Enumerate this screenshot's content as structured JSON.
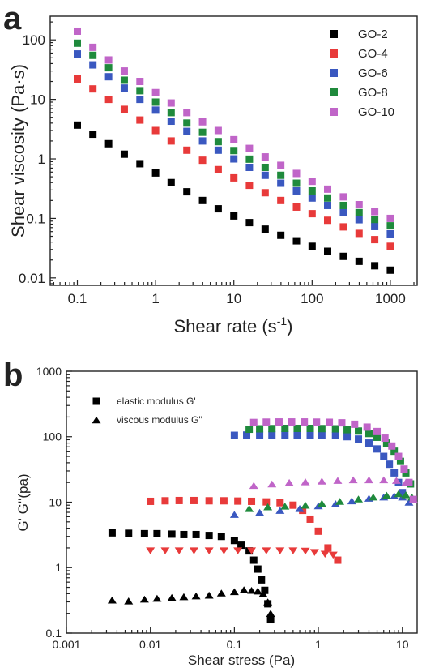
{
  "chart_data": [
    {
      "panel_label": "a",
      "type": "scatter",
      "xlabel": "Shear rate (s",
      "xlabel_sup": "-1",
      "xlabel_tail": ")",
      "ylabel": "Shear viscosity (Pa·s)",
      "xscale": "log",
      "yscale": "log",
      "xlim": [
        0.045,
        2200
      ],
      "ylim": [
        0.0075,
        250
      ],
      "xticks": [
        0.1,
        1,
        10,
        100,
        1000
      ],
      "xtick_labels": [
        "0.1",
        "1",
        "10",
        "100",
        "1000"
      ],
      "yticks": [
        0.01,
        0.1,
        1,
        10,
        100
      ],
      "ytick_labels": [
        "0.01",
        "0.1",
        "1",
        "10",
        "100"
      ],
      "legend_position": "top-right",
      "grid": false,
      "series": [
        {
          "name": "GO-2",
          "color": "#000000",
          "marker": "square",
          "x": [
            0.1,
            0.158,
            0.251,
            0.398,
            0.631,
            1,
            1.58,
            2.51,
            3.98,
            6.31,
            10,
            15.8,
            25.1,
            39.8,
            63.1,
            100,
            158,
            251,
            398,
            631,
            1000
          ],
          "y": [
            3.7,
            2.6,
            1.8,
            1.2,
            0.83,
            0.58,
            0.4,
            0.28,
            0.2,
            0.145,
            0.11,
            0.085,
            0.066,
            0.052,
            0.042,
            0.034,
            0.028,
            0.023,
            0.019,
            0.016,
            0.0135
          ]
        },
        {
          "name": "GO-4",
          "color": "#e83a3a",
          "marker": "square",
          "x": [
            0.1,
            0.158,
            0.251,
            0.398,
            0.631,
            1,
            1.58,
            2.51,
            3.98,
            6.31,
            10,
            15.8,
            25.1,
            39.8,
            63.1,
            100,
            158,
            251,
            398,
            631,
            1000
          ],
          "y": [
            22,
            15,
            10,
            6.8,
            4.5,
            3.0,
            2.0,
            1.4,
            0.95,
            0.66,
            0.48,
            0.36,
            0.27,
            0.2,
            0.155,
            0.12,
            0.093,
            0.072,
            0.056,
            0.044,
            0.034
          ]
        },
        {
          "name": "GO-6",
          "color": "#3a58c0",
          "marker": "square",
          "x": [
            0.1,
            0.158,
            0.251,
            0.398,
            0.631,
            1,
            1.58,
            2.51,
            3.98,
            6.31,
            10,
            15.8,
            25.1,
            39.8,
            63.1,
            100,
            158,
            251,
            398,
            631,
            1000
          ],
          "y": [
            58,
            38,
            24,
            15.5,
            10,
            6.6,
            4.3,
            2.9,
            2.0,
            1.4,
            1.0,
            0.72,
            0.53,
            0.39,
            0.29,
            0.22,
            0.165,
            0.125,
            0.095,
            0.073,
            0.055
          ]
        },
        {
          "name": "GO-8",
          "color": "#1f8a3c",
          "marker": "square",
          "x": [
            0.1,
            0.158,
            0.251,
            0.398,
            0.631,
            1,
            1.58,
            2.51,
            3.98,
            6.31,
            10,
            15.8,
            25.1,
            39.8,
            63.1,
            100,
            158,
            251,
            398,
            631,
            1000
          ],
          "y": [
            88,
            55,
            34,
            21,
            14,
            9.0,
            6.0,
            4.0,
            2.8,
            1.95,
            1.38,
            0.99,
            0.72,
            0.53,
            0.39,
            0.29,
            0.22,
            0.165,
            0.125,
            0.096,
            0.075
          ]
        },
        {
          "name": "GO-10",
          "color": "#c065c8",
          "marker": "square",
          "x": [
            0.1,
            0.158,
            0.251,
            0.398,
            0.631,
            1,
            1.58,
            2.51,
            3.98,
            6.31,
            10,
            15.8,
            25.1,
            39.8,
            63.1,
            100,
            158,
            251,
            398,
            631,
            1000
          ],
          "y": [
            140,
            75,
            46,
            30,
            20,
            13,
            8.7,
            6.0,
            4.2,
            3.0,
            2.1,
            1.5,
            1.08,
            0.78,
            0.57,
            0.42,
            0.31,
            0.23,
            0.17,
            0.13,
            0.1
          ]
        }
      ]
    },
    {
      "panel_label": "b",
      "type": "scatter",
      "xlabel": "Shear stress (Pa)",
      "ylabel": "G'  G''(pa)",
      "xscale": "log",
      "yscale": "log",
      "xlim": [
        0.001,
        15
      ],
      "ylim": [
        0.1,
        1000
      ],
      "xticks": [
        0.001,
        0.01,
        0.1,
        1,
        10
      ],
      "xtick_labels": [
        "0.001",
        "0.01",
        "0.1",
        "1",
        "10"
      ],
      "yticks": [
        0.1,
        1,
        10,
        100,
        1000
      ],
      "ytick_labels": [
        "0.1",
        "1",
        "10",
        "100",
        "1000"
      ],
      "legend_position": "top-left",
      "grid": false,
      "legend": [
        {
          "label": "elastic modulus  G'",
          "marker": "square",
          "color": "#000000"
        },
        {
          "label": "viscous modulus  G''",
          "marker": "triangle-up",
          "color": "#000000"
        }
      ],
      "series": [
        {
          "color": "#000000",
          "marker": "square",
          "x": [
            0.0035,
            0.0055,
            0.0085,
            0.012,
            0.018,
            0.025,
            0.035,
            0.05,
            0.07,
            0.1,
            0.12,
            0.15,
            0.17,
            0.19,
            0.21,
            0.23,
            0.25,
            0.27
          ],
          "y": [
            3.4,
            3.35,
            3.3,
            3.3,
            3.25,
            3.2,
            3.2,
            3.1,
            3.0,
            2.6,
            2.2,
            1.8,
            1.3,
            0.95,
            0.65,
            0.45,
            0.28,
            0.16
          ]
        },
        {
          "color": "#000000",
          "marker": "triangle-up",
          "x": [
            0.0035,
            0.0055,
            0.0085,
            0.012,
            0.018,
            0.025,
            0.035,
            0.05,
            0.07,
            0.1,
            0.13,
            0.16,
            0.19,
            0.22,
            0.25,
            0.27
          ],
          "y": [
            0.32,
            0.31,
            0.33,
            0.34,
            0.35,
            0.36,
            0.37,
            0.38,
            0.41,
            0.43,
            0.46,
            0.45,
            0.44,
            0.4,
            0.3,
            0.2
          ]
        },
        {
          "color": "#e83a3a",
          "marker": "square",
          "x": [
            0.01,
            0.015,
            0.022,
            0.033,
            0.05,
            0.075,
            0.11,
            0.16,
            0.24,
            0.35,
            0.5,
            0.65,
            0.8,
            1.0,
            1.3,
            1.7
          ],
          "y": [
            10.3,
            10.5,
            10.6,
            10.6,
            10.5,
            10.5,
            10.4,
            10.3,
            10.1,
            9.8,
            9.0,
            7.5,
            5.5,
            3.6,
            2.0,
            1.3
          ]
        },
        {
          "color": "#e83a3a",
          "marker": "triangle-down",
          "x": [
            0.01,
            0.015,
            0.022,
            0.033,
            0.05,
            0.075,
            0.11,
            0.16,
            0.24,
            0.35,
            0.5,
            0.7,
            0.9,
            1.2,
            1.5
          ],
          "y": [
            1.8,
            1.8,
            1.8,
            1.8,
            1.8,
            1.8,
            1.8,
            1.8,
            1.8,
            1.8,
            1.8,
            1.78,
            1.7,
            1.6,
            1.55
          ]
        },
        {
          "color": "#3a58c0",
          "marker": "square",
          "x": [
            0.1,
            0.14,
            0.2,
            0.28,
            0.4,
            0.56,
            0.8,
            1.1,
            1.6,
            2.2,
            3.0,
            4.0,
            5.0,
            6.0,
            7.0,
            8.0,
            9.0,
            10.0
          ],
          "y": [
            105,
            106,
            106,
            106,
            106,
            106,
            106,
            105,
            104,
            100,
            92,
            80,
            65,
            50,
            38,
            28,
            20,
            14
          ]
        },
        {
          "color": "#3a58c0",
          "marker": "triangle-up",
          "x": [
            0.1,
            0.2,
            0.35,
            0.6,
            1.0,
            1.6,
            2.5,
            4.0,
            6.0,
            8.0,
            10.0,
            12.0
          ],
          "y": [
            6.5,
            7.0,
            7.5,
            8.0,
            8.8,
            9.5,
            10.5,
            11.5,
            12.0,
            12.5,
            12.0,
            10.0
          ]
        },
        {
          "color": "#1f8a3c",
          "marker": "square",
          "x": [
            0.15,
            0.2,
            0.28,
            0.4,
            0.56,
            0.8,
            1.1,
            1.6,
            2.2,
            3.0,
            4.0,
            5.0,
            6.5,
            8.0,
            9.5,
            11.0,
            12.5
          ],
          "y": [
            130,
            132,
            133,
            134,
            134,
            134,
            133,
            132,
            128,
            122,
            112,
            98,
            80,
            60,
            42,
            28,
            19
          ]
        },
        {
          "color": "#1f8a3c",
          "marker": "triangle-up",
          "x": [
            0.15,
            0.25,
            0.4,
            0.7,
            1.1,
            1.8,
            3.0,
            4.5,
            6.5,
            9.0,
            11.0,
            13.0
          ],
          "y": [
            8.0,
            8.5,
            8.7,
            9.0,
            9.6,
            10.3,
            11.2,
            12.0,
            12.8,
            13.5,
            13.0,
            12.0
          ]
        },
        {
          "color": "#c065c8",
          "marker": "square",
          "x": [
            0.17,
            0.24,
            0.34,
            0.48,
            0.68,
            0.95,
            1.35,
            1.9,
            2.7,
            3.8,
            5.0,
            6.2,
            7.5,
            9.0,
            10.5,
            12.0,
            13.5
          ],
          "y": [
            165,
            167,
            168,
            168,
            168,
            167,
            166,
            163,
            155,
            140,
            120,
            95,
            72,
            50,
            32,
            20,
            11
          ]
        },
        {
          "color": "#c065c8",
          "marker": "triangle-up",
          "x": [
            0.17,
            0.28,
            0.45,
            0.7,
            1.1,
            1.7,
            2.6,
            4.0,
            6.0,
            8.5,
            11.0,
            13.5
          ],
          "y": [
            18,
            19,
            20,
            20.5,
            21,
            21.5,
            22,
            22,
            22,
            21.5,
            20,
            11
          ]
        }
      ]
    }
  ]
}
